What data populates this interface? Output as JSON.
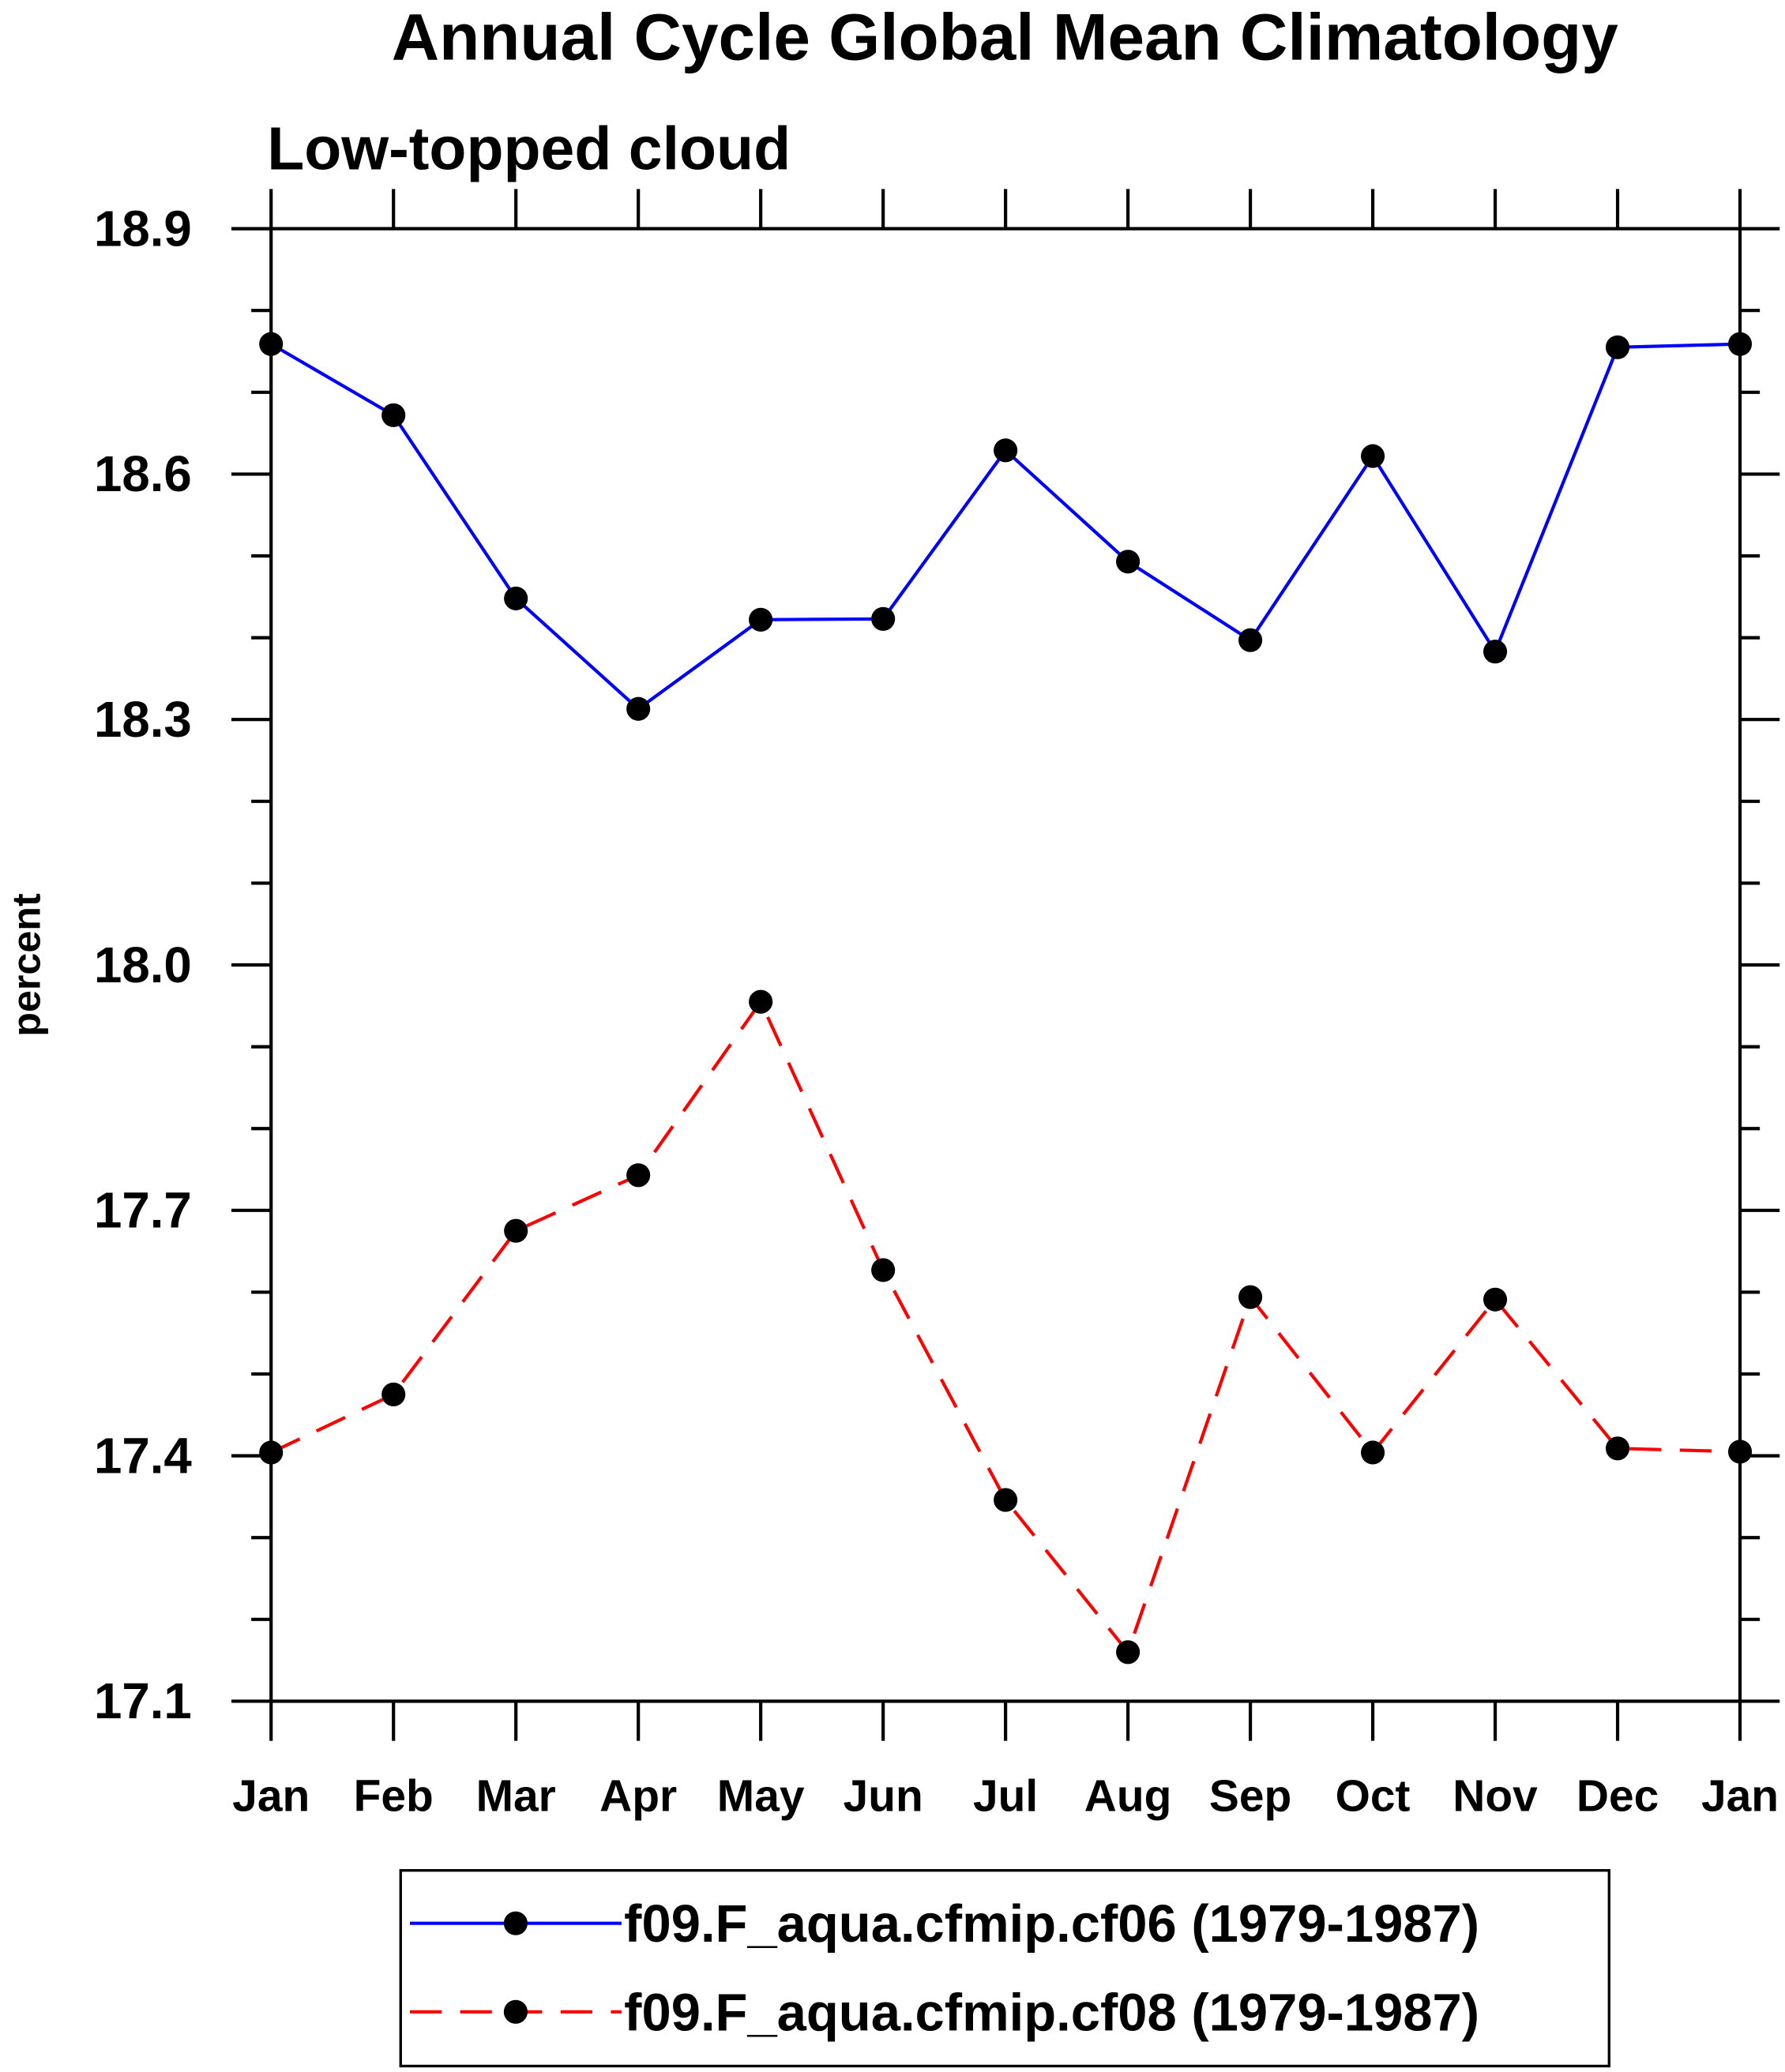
{
  "chart_data": {
    "type": "line",
    "title": "Annual Cycle Global Mean Climatology",
    "subtitle": "Low-topped cloud",
    "xlabel": "",
    "ylabel": "percent",
    "ylim": [
      17.1,
      18.9
    ],
    "yticks": [
      "18.9",
      "18.6",
      "18.3",
      "18.0",
      "17.7",
      "17.4",
      "17.1"
    ],
    "ytick_values": [
      18.9,
      18.6,
      18.3,
      18.0,
      17.7,
      17.4,
      17.1
    ],
    "minor_step": 0.1,
    "categories": [
      "Jan",
      "Feb",
      "Mar",
      "Apr",
      "May",
      "Jun",
      "Jul",
      "Aug",
      "Sep",
      "Oct",
      "Nov",
      "Dec",
      "Jan"
    ],
    "legend_position": "bottom",
    "series": [
      {
        "name": "f09.F_aqua.cfmip.cf06 (1979-1987)",
        "color": "#0000ff",
        "dash": "solid",
        "values": [
          18.759,
          18.672,
          18.448,
          18.313,
          18.422,
          18.423,
          18.629,
          18.493,
          18.397,
          18.622,
          18.383,
          18.755,
          18.759
        ]
      },
      {
        "name": "f09.F_aqua.cfmip.cf08 (1979-1987)",
        "color": "#ff0000",
        "dash": "dashed",
        "values": [
          17.404,
          17.475,
          17.675,
          17.743,
          17.955,
          17.627,
          17.346,
          17.16,
          17.594,
          17.404,
          17.591,
          17.409,
          17.405
        ]
      }
    ]
  }
}
